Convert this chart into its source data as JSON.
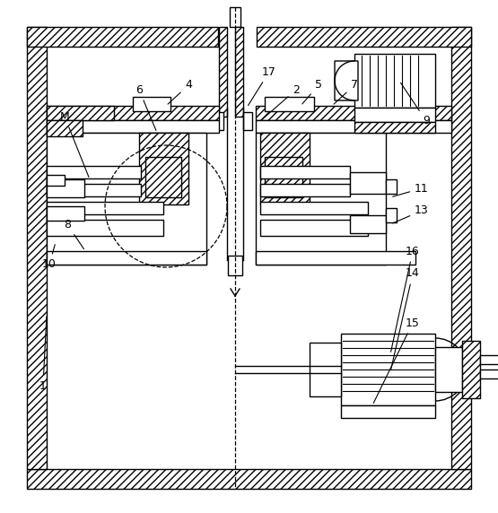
{
  "fig_width": 5.55,
  "fig_height": 5.72,
  "dpi": 100,
  "bg_color": "#ffffff"
}
